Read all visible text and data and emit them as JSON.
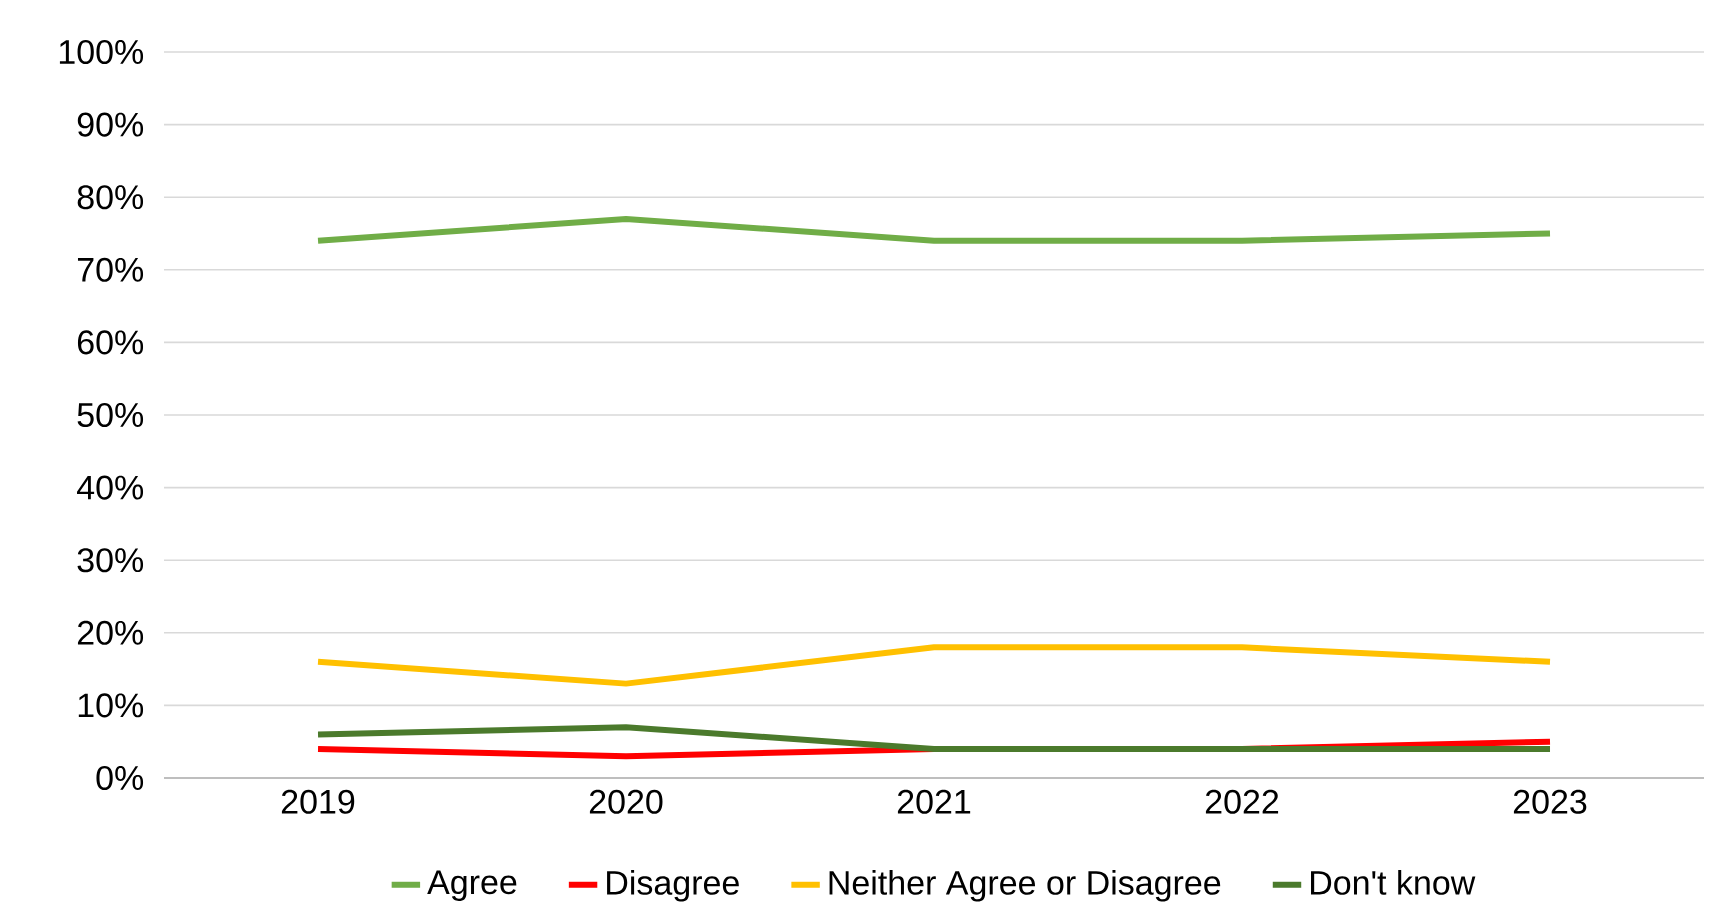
{
  "chart_data": {
    "type": "line",
    "categories": [
      "2019",
      "2020",
      "2021",
      "2022",
      "2023"
    ],
    "series": [
      {
        "name": "Agree",
        "color": "#70ad47",
        "values": [
          74,
          77,
          74,
          74,
          75
        ]
      },
      {
        "name": "Disagree",
        "color": "#ff0000",
        "values": [
          4,
          3,
          4,
          4,
          5
        ]
      },
      {
        "name": "Neither Agree or Disagree",
        "color": "#ffc000",
        "values": [
          16,
          13,
          18,
          18,
          16
        ]
      },
      {
        "name": "Don't know",
        "color": "#4b7a2c",
        "values": [
          6,
          7,
          4,
          4,
          4
        ]
      }
    ],
    "ylim": [
      0,
      100
    ],
    "yticks": [
      {
        "value": 0,
        "label": "0%"
      },
      {
        "value": 10,
        "label": "10%"
      },
      {
        "value": 20,
        "label": "20%"
      },
      {
        "value": 30,
        "label": "30%"
      },
      {
        "value": 40,
        "label": "40%"
      },
      {
        "value": 50,
        "label": "50%"
      },
      {
        "value": 60,
        "label": "60%"
      },
      {
        "value": 70,
        "label": "70%"
      },
      {
        "value": 80,
        "label": "80%"
      },
      {
        "value": 90,
        "label": "90%"
      },
      {
        "value": 100,
        "label": "100%"
      }
    ],
    "grid": "y",
    "legend": "bottom",
    "marker": "none",
    "line_style": "solid"
  }
}
